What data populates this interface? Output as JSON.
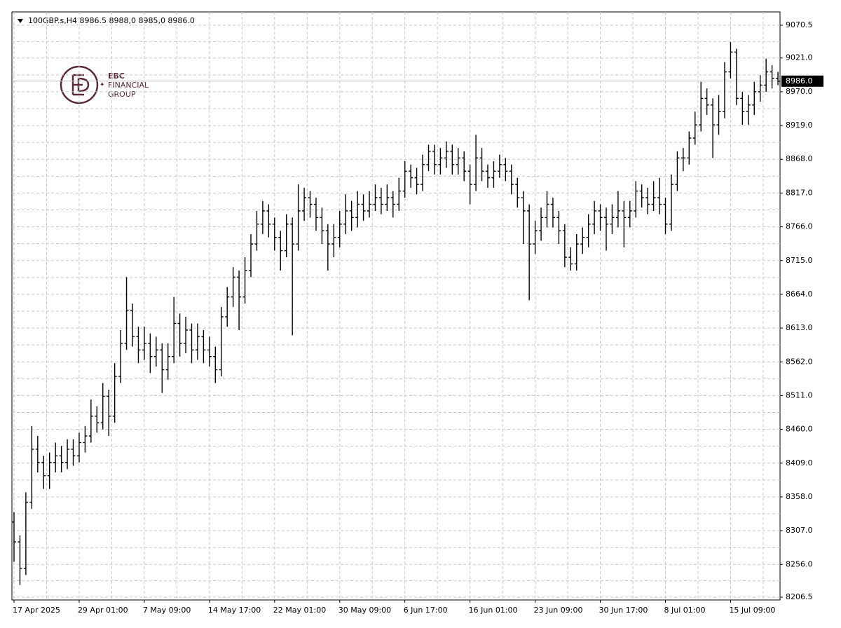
{
  "chart_data": {
    "type": "ohlc",
    "title": "100GBP.s,H4  8986.5 8988,0 8985,0 8986.0",
    "logo": {
      "line1": "EBC",
      "line2": "FINANCIAL",
      "line3": "GROUP"
    },
    "last_price": {
      "value": 8986,
      "label": "8986.0"
    },
    "color": "#000000",
    "grid": true,
    "ylim": [
      8202.3,
      9090.6
    ],
    "yticks": [
      9070.5,
      {
        "value": 9021,
        "label": "9021.0"
      },
      {
        "value": 8970,
        "label": "8970.0"
      },
      {
        "value": 8919,
        "label": "8919.0"
      },
      {
        "value": 8868,
        "label": "8868.0"
      },
      {
        "value": 8817,
        "label": "8817.0"
      },
      {
        "value": 8766,
        "label": "8766.0"
      },
      {
        "value": 8715,
        "label": "8715.0"
      },
      {
        "value": 8664,
        "label": "8664.0"
      },
      {
        "value": 8613,
        "label": "8613.0"
      },
      {
        "value": 8562,
        "label": "8562.0"
      },
      {
        "value": 8511,
        "label": "8511.0"
      },
      {
        "value": 8460,
        "label": "8460.0"
      },
      {
        "value": 8409,
        "label": "8409.0"
      },
      {
        "value": 8358,
        "label": "8358.0"
      },
      {
        "value": 8307,
        "label": "8307.0"
      },
      {
        "value": 8256,
        "label": "8256.0"
      },
      8206.5
    ],
    "categories": [
      "17 Apr 2025",
      null,
      null,
      null,
      null,
      null,
      null,
      null,
      null,
      null,
      null,
      "29 Apr 01:00",
      null,
      null,
      null,
      null,
      null,
      null,
      null,
      null,
      null,
      null,
      "7 May 09:00",
      null,
      null,
      null,
      null,
      null,
      null,
      null,
      null,
      null,
      null,
      "14 May 17:00",
      null,
      null,
      null,
      null,
      null,
      null,
      null,
      null,
      null,
      null,
      "22 May 01:00",
      null,
      null,
      null,
      null,
      null,
      null,
      null,
      null,
      null,
      null,
      "30 May 09:00",
      null,
      null,
      null,
      null,
      null,
      null,
      null,
      null,
      null,
      null,
      "6 Jun 17:00",
      null,
      null,
      null,
      null,
      null,
      null,
      null,
      null,
      null,
      null,
      "16 Jun 01:00",
      null,
      null,
      null,
      null,
      null,
      null,
      null,
      null,
      null,
      null,
      "23 Jun 09:00",
      null,
      null,
      null,
      null,
      null,
      null,
      null,
      null,
      null,
      null,
      "30 Jun 17:00",
      null,
      null,
      null,
      null,
      null,
      null,
      null,
      null,
      null,
      null,
      "8 Jul 01:00",
      null,
      null,
      null,
      null,
      null,
      null,
      null,
      null,
      null,
      null,
      "15 Jul 09:00",
      null,
      null,
      null,
      null,
      null,
      null,
      null,
      null
    ],
    "open": [
      8320,
      8290,
      8250,
      8350,
      8430,
      8410,
      8390,
      8410,
      8420,
      8410,
      8430,
      8420,
      8440,
      8450,
      8480,
      8470,
      8510,
      8480,
      8540,
      8590,
      8640,
      8600,
      8580,
      8590,
      8570,
      8580,
      8550,
      8570,
      8620,
      8590,
      8610,
      8580,
      8600,
      8580,
      8570,
      8550,
      8630,
      8660,
      8690,
      8660,
      8700,
      8740,
      8770,
      8790,
      8770,
      8750,
      8730,
      8770,
      8740,
      8790,
      8810,
      8800,
      8780,
      8760,
      8740,
      8750,
      8770,
      8790,
      8780,
      8800,
      8790,
      8800,
      8810,
      8800,
      8810,
      8800,
      8820,
      8850,
      8840,
      8830,
      8860,
      8880,
      8860,
      8870,
      8880,
      8860,
      8870,
      8850,
      8830,
      8870,
      8850,
      8840,
      8850,
      8860,
      8850,
      8830,
      8810,
      8790,
      8740,
      8760,
      8780,
      8800,
      8780,
      8760,
      8720,
      8710,
      8740,
      8750,
      8770,
      8790,
      8780,
      8770,
      8780,
      8790,
      8780,
      8790,
      8820,
      8810,
      8800,
      8810,
      8800,
      8770,
      8830,
      8870,
      8870,
      8900,
      8920,
      8960,
      8950,
      8920,
      8940,
      9000,
      9030,
      8960,
      8940,
      8950,
      8970,
      8980,
      9000,
      8990
    ],
    "high": [
      8335,
      8300,
      8365,
      8465,
      8450,
      8420,
      8425,
      8440,
      8435,
      8445,
      8445,
      8455,
      8465,
      8505,
      8495,
      8530,
      8520,
      8560,
      8610,
      8690,
      8650,
      8615,
      8615,
      8605,
      8600,
      8590,
      8590,
      8660,
      8635,
      8630,
      8620,
      8620,
      8610,
      8600,
      8585,
      8645,
      8675,
      8705,
      8700,
      8720,
      8755,
      8790,
      8805,
      8800,
      8780,
      8760,
      8785,
      8780,
      8830,
      8825,
      8820,
      8810,
      8795,
      8770,
      8770,
      8790,
      8815,
      8805,
      8820,
      8815,
      8820,
      8830,
      8825,
      8830,
      8820,
      8840,
      8865,
      8860,
      8855,
      8875,
      8890,
      8890,
      8885,
      8895,
      8890,
      8885,
      8880,
      8860,
      8905,
      8885,
      8860,
      8865,
      8875,
      8870,
      8860,
      8840,
      8820,
      8800,
      8775,
      8795,
      8820,
      8810,
      8790,
      8770,
      8735,
      8755,
      8765,
      8785,
      8805,
      8800,
      8795,
      8800,
      8820,
      8805,
      8805,
      8835,
      8830,
      8825,
      8835,
      8840,
      8810,
      8845,
      8880,
      8885,
      8910,
      8940,
      8985,
      8975,
      8960,
      8965,
      9015,
      9045,
      9035,
      8970,
      8965,
      8985,
      8995,
      9020,
      9010,
      9000
    ],
    "low": [
      8260,
      8225,
      8240,
      8340,
      8395,
      8370,
      8370,
      8395,
      8395,
      8400,
      8405,
      8410,
      8425,
      8440,
      8455,
      8460,
      8450,
      8470,
      8530,
      8580,
      8585,
      8560,
      8565,
      8545,
      8555,
      8515,
      8535,
      8560,
      8570,
      8575,
      8560,
      8565,
      8560,
      8555,
      8530,
      8540,
      8615,
      8645,
      8610,
      8650,
      8690,
      8730,
      8755,
      8750,
      8730,
      8700,
      8720,
      8602,
      8730,
      8775,
      8780,
      8760,
      8740,
      8700,
      8720,
      8735,
      8755,
      8760,
      8765,
      8775,
      8780,
      8790,
      8785,
      8790,
      8780,
      8790,
      8810,
      8825,
      8815,
      8820,
      8850,
      8845,
      8845,
      8855,
      8845,
      8845,
      8835,
      8800,
      8820,
      8835,
      8825,
      8825,
      8840,
      8835,
      8815,
      8795,
      8740,
      8655,
      8725,
      8745,
      8765,
      8765,
      8740,
      8705,
      8700,
      8700,
      8725,
      8735,
      8755,
      8760,
      8730,
      8755,
      8765,
      8735,
      8765,
      8780,
      8795,
      8785,
      8790,
      8785,
      8755,
      8760,
      8820,
      8850,
      8860,
      8890,
      8910,
      8935,
      8870,
      8905,
      8930,
      8990,
      8950,
      8920,
      8920,
      8935,
      8955,
      8970,
      8975,
      8980
    ],
    "close": [
      8290,
      8250,
      8350,
      8430,
      8410,
      8390,
      8410,
      8420,
      8410,
      8430,
      8420,
      8440,
      8450,
      8480,
      8470,
      8510,
      8480,
      8540,
      8590,
      8640,
      8600,
      8580,
      8590,
      8570,
      8580,
      8550,
      8570,
      8620,
      8590,
      8610,
      8580,
      8600,
      8580,
      8570,
      8550,
      8630,
      8660,
      8690,
      8660,
      8700,
      8740,
      8770,
      8790,
      8770,
      8750,
      8730,
      8770,
      8740,
      8790,
      8810,
      8800,
      8780,
      8760,
      8740,
      8750,
      8770,
      8790,
      8780,
      8800,
      8790,
      8800,
      8810,
      8800,
      8810,
      8800,
      8820,
      8850,
      8840,
      8830,
      8860,
      8880,
      8860,
      8870,
      8880,
      8860,
      8870,
      8850,
      8830,
      8870,
      8850,
      8840,
      8850,
      8860,
      8850,
      8830,
      8810,
      8790,
      8740,
      8760,
      8780,
      8800,
      8780,
      8760,
      8720,
      8710,
      8740,
      8750,
      8770,
      8790,
      8780,
      8770,
      8780,
      8790,
      8780,
      8790,
      8820,
      8810,
      8800,
      8810,
      8800,
      8770,
      8830,
      8870,
      8870,
      8900,
      8920,
      8960,
      8950,
      8920,
      8940,
      9000,
      9030,
      8960,
      8940,
      8950,
      8970,
      8980,
      9000,
      8990,
      8986
    ]
  }
}
